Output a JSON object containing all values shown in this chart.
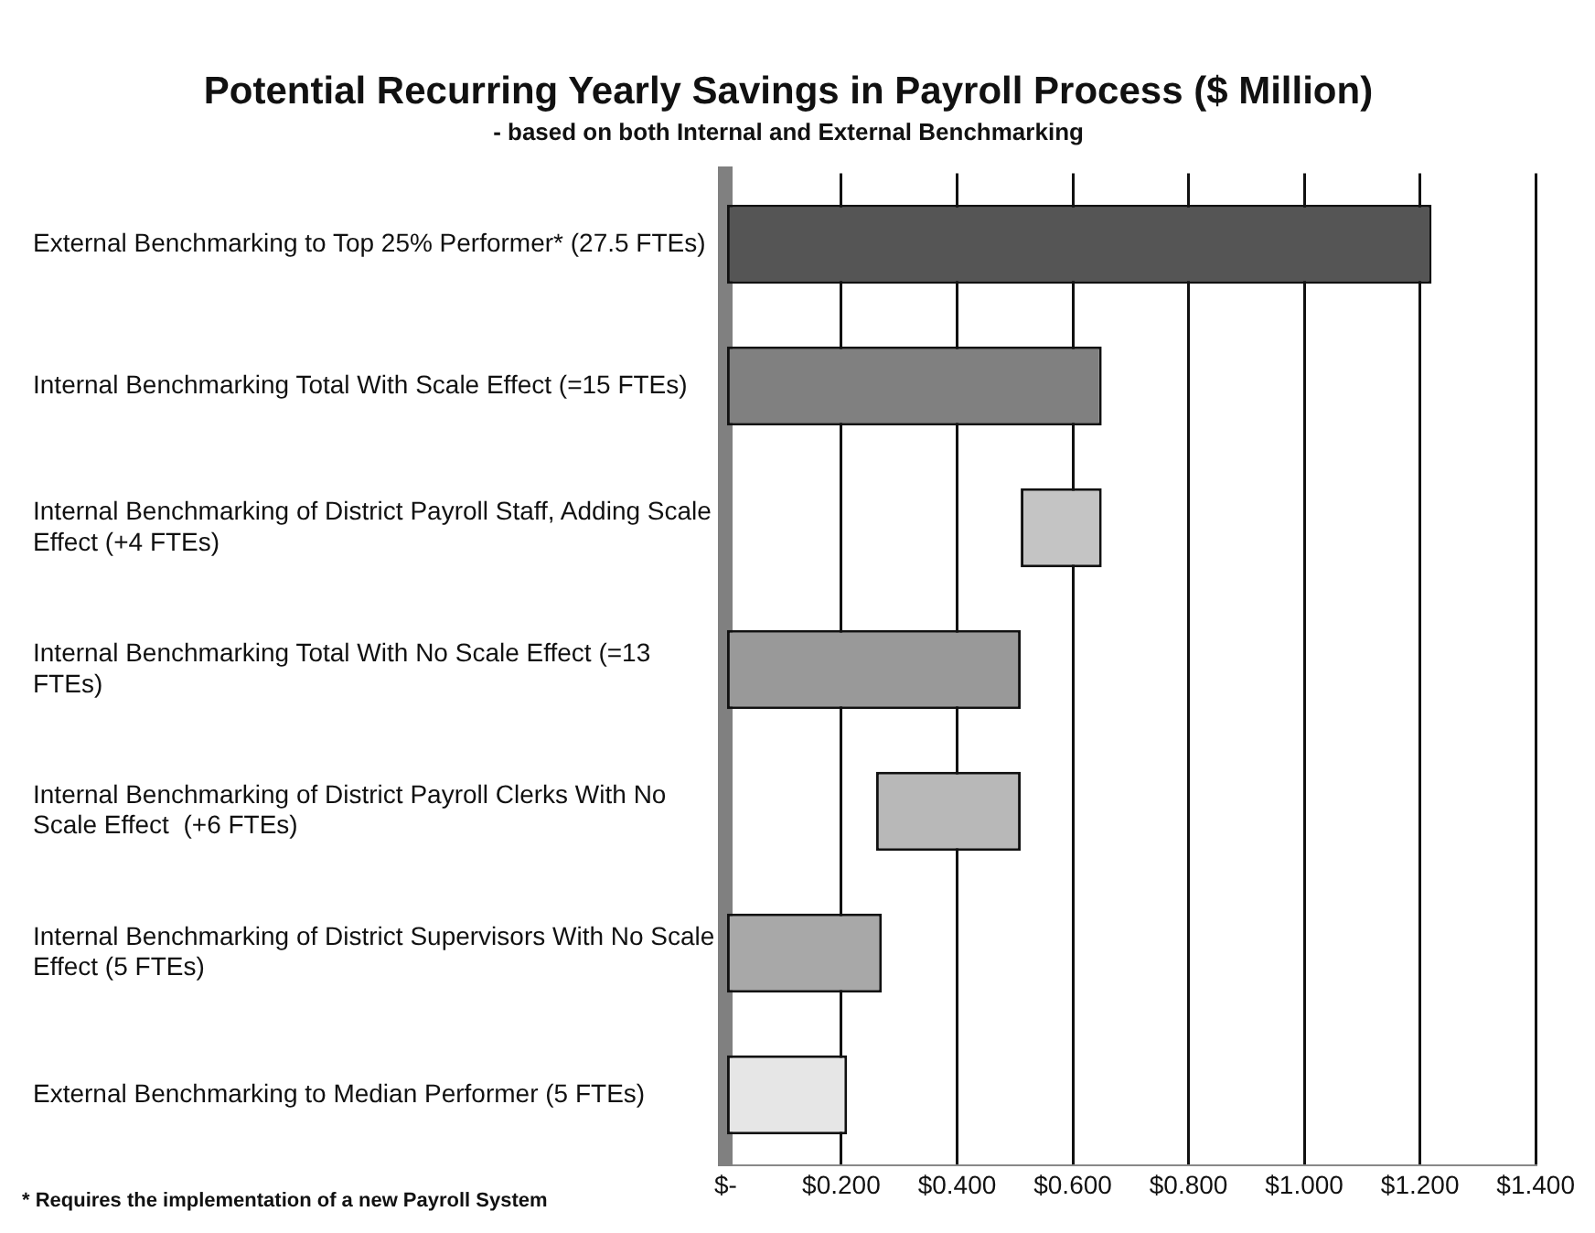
{
  "chart_data": {
    "type": "bar",
    "orientation": "horizontal",
    "title": "Potential Recurring Yearly Savings in Payroll Process ($ Million)",
    "subtitle": "- based on both Internal and External Benchmarking",
    "categories": [
      "External Benchmarking to Top 25% Performer* (27.5 FTEs)",
      "Internal Benchmarking Total With Scale Effect (=15 FTEs)",
      "Internal Benchmarking of District Payroll Staff, Adding Scale Effect (+4 FTEs)",
      "Internal Benchmarking Total With No Scale Effect (=13  FTEs)",
      "Internal Benchmarking of District Payroll Clerks With No Scale Effect  (+6 FTEs)",
      "Internal Benchmarking of District Supervisors With No Scale Effect (5 FTEs)",
      "External Benchmarking to Median Performer (5 FTEs)"
    ],
    "values": [
      1.22,
      0.65,
      0.14,
      0.51,
      0.25,
      0.27,
      0.21
    ],
    "base": [
      0,
      0,
      0.51,
      0,
      0.26,
      0,
      0
    ],
    "colors": [
      "#555555",
      "#808080",
      "#c4c4c4",
      "#999999",
      "#b8b8b8",
      "#a8a8a8",
      "#e6e6e6"
    ],
    "xlim": [
      0,
      1.4
    ],
    "xticks": [
      {
        "value": 0,
        "label": "$-"
      },
      {
        "value": 0.2,
        "label": "$0.200"
      },
      {
        "value": 0.4,
        "label": "$0.400"
      },
      {
        "value": 0.6,
        "label": "$0.600"
      },
      {
        "value": 0.8,
        "label": "$0.800"
      },
      {
        "value": 1.0,
        "label": "$1.000"
      },
      {
        "value": 1.2,
        "label": "$1.200"
      },
      {
        "value": 1.4,
        "label": "$1.400"
      }
    ],
    "grid": "x",
    "legend": false,
    "annotations": [
      "* Requires the implementation of a new Payroll System"
    ]
  }
}
